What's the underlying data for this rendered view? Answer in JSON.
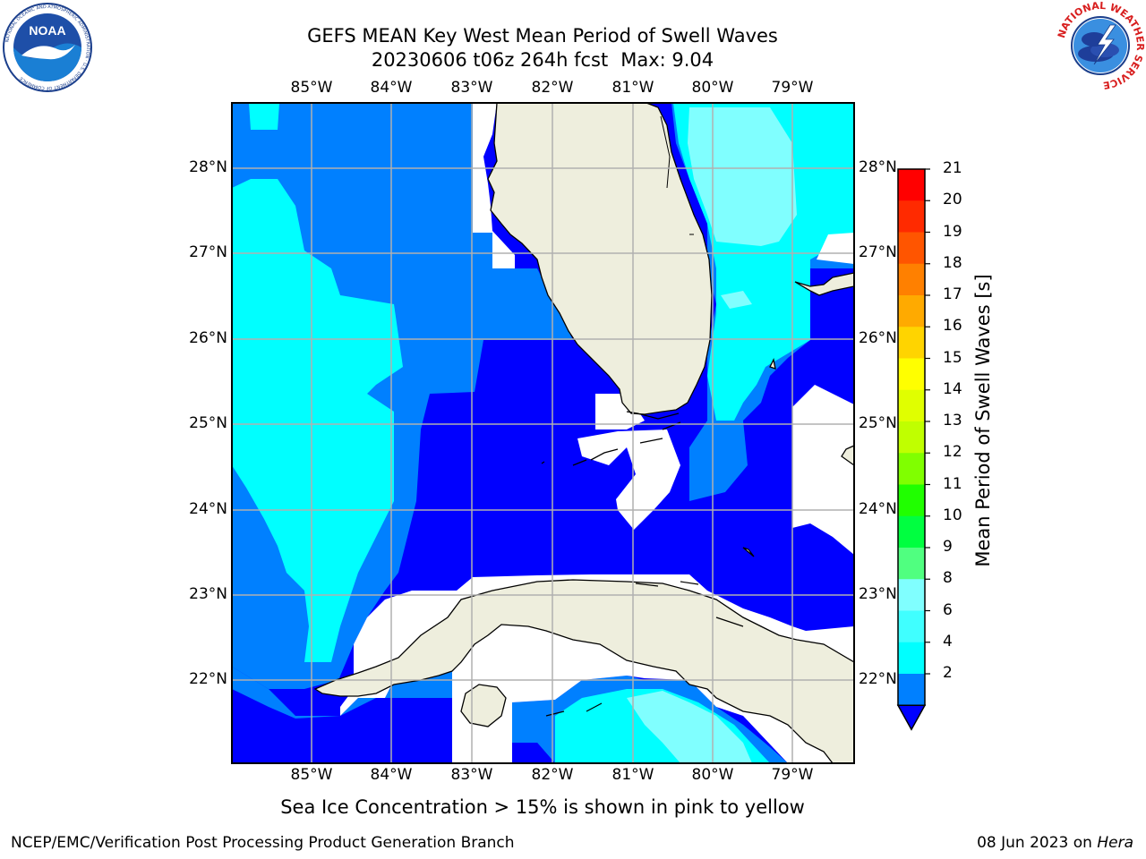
{
  "header": {
    "title_line1": "GEFS MEAN Key West Mean Period of Swell Waves",
    "title_line2_run": "20230606 t06z 264h fcst",
    "title_line2_max": "Max: 9.04"
  },
  "logos": {
    "left": {
      "name": "NOAA",
      "ring_text": "NATIONAL OCEANIC AND ATMOSPHERIC ADMINISTRATION · U.S. DEPARTMENT OF COMMERCE"
    },
    "right": {
      "ring_text": "NATIONAL WEATHER SERVICE"
    }
  },
  "map": {
    "lon_ticks": [
      "85°W",
      "84°W",
      "83°W",
      "82°W",
      "81°W",
      "80°W",
      "79°W"
    ],
    "lat_ticks": [
      "28°N",
      "27°N",
      "26°N",
      "25°N",
      "24°N",
      "23°N",
      "22°N"
    ],
    "colors": {
      "land": "#eeeedd",
      "coast": "#000000",
      "grid": "#b0b0b0",
      "band_2_4": "#0000ff",
      "band_4_6": "#0080ff",
      "band_6_8": "#00ffff",
      "band_8_9": "#80ffff"
    }
  },
  "colorbar": {
    "label": "Mean Period of Swell Waves [s]",
    "ticks": [
      "21",
      "20",
      "19",
      "18",
      "17",
      "16",
      "15",
      "14",
      "13",
      "12",
      "11",
      "10",
      "9",
      "8",
      "6",
      "4",
      "2"
    ],
    "colors": [
      "#ff0000",
      "#ff2a00",
      "#ff5500",
      "#ff8000",
      "#ffaa00",
      "#ffd400",
      "#ffff00",
      "#e0ff00",
      "#c0ff00",
      "#80ff00",
      "#20ff00",
      "#00ff40",
      "#50ff80",
      "#80ffff",
      "#40ffff",
      "#00ffff",
      "#0080ff"
    ],
    "extend_color": "#0000ff"
  },
  "caption": "Sea Ice Concentration > 15% is shown in pink to yellow",
  "footer": {
    "left": "NCEP/EMC/Verification Post Processing Product Generation Branch",
    "date": "08 Jun 2023 on",
    "host": "Hera"
  }
}
